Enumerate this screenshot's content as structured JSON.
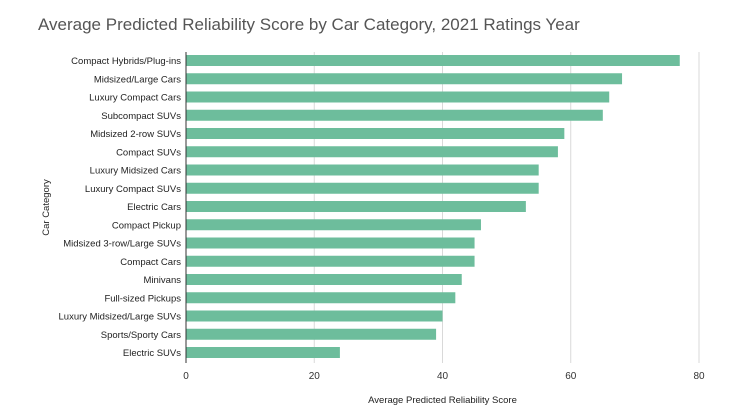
{
  "chart_data": {
    "type": "bar",
    "orientation": "horizontal",
    "title": "Average Predicted Reliability Score by Car Category, 2021 Ratings Year",
    "xlabel": "Average Predicted Reliability Score",
    "ylabel": "Car Category",
    "xlim": [
      0,
      80
    ],
    "xticks": [
      0,
      20,
      40,
      60,
      80
    ],
    "grid": true,
    "bar_color": "#6dbd9c",
    "categories": [
      "Compact Hybrids/Plug-ins",
      "Midsized/Large Cars",
      "Luxury Compact Cars",
      "Subcompact SUVs",
      "Midsized 2-row SUVs",
      "Compact SUVs",
      "Luxury Midsized Cars",
      "Luxury Compact SUVs",
      "Electric Cars",
      "Compact Pickup",
      "Midsized 3-row/Large SUVs",
      "Compact Cars",
      "Minivans",
      "Full-sized Pickups",
      "Luxury Midsized/Large SUVs",
      "Sports/Sporty Cars",
      "Electric SUVs"
    ],
    "values": [
      77,
      68,
      66,
      65,
      59,
      58,
      55,
      55,
      53,
      46,
      45,
      45,
      43,
      42,
      40,
      39,
      24
    ]
  }
}
